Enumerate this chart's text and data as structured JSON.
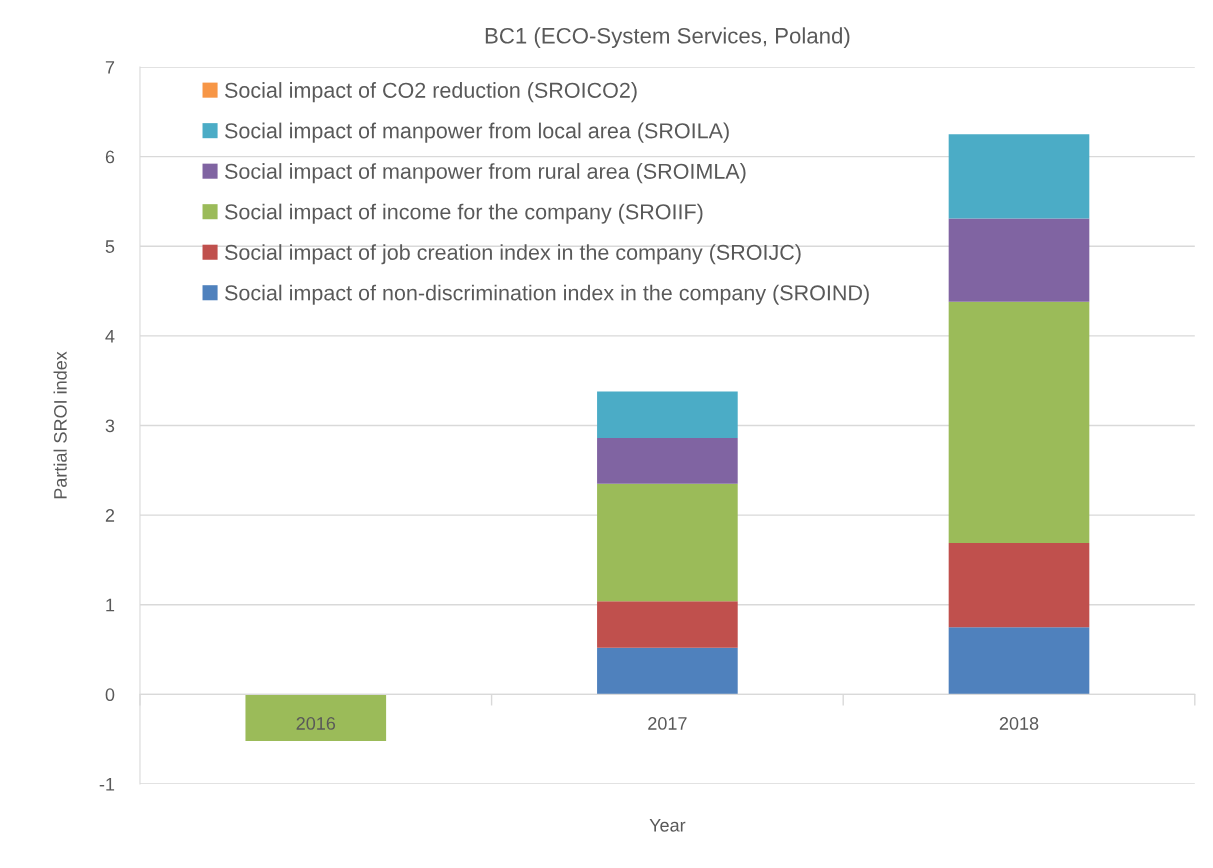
{
  "chart_data": {
    "type": "bar",
    "title": "BC1 (ECO-System Services, Poland)",
    "xlabel": "Year",
    "ylabel": "Partial SROI index",
    "categories": [
      "2016",
      "2017",
      "2018"
    ],
    "stacked": true,
    "series": [
      {
        "name": "Social impact of non-discrimination index in the company (SROIND)",
        "color": "#4f81bd",
        "values": [
          0,
          0.52,
          0.75
        ]
      },
      {
        "name": "Social impact of job creation index in the company (SROIJC)",
        "color": "#c0504d",
        "values": [
          0,
          0.52,
          0.94
        ]
      },
      {
        "name": "Social impact of income for the company (SROIIF)",
        "color": "#9bbb59",
        "values": [
          -0.52,
          1.31,
          2.69
        ]
      },
      {
        "name": "Social impact of manpower from rural area (SROIMLA)",
        "color": "#8064a2",
        "values": [
          0,
          0.51,
          0.93
        ]
      },
      {
        "name": "Social impact of manpower from local area (SROILA)",
        "color": "#4bacc6",
        "values": [
          0,
          0.52,
          0.94
        ]
      },
      {
        "name": "Social impact of CO2 reduction (SROICO2)",
        "color": "#f79646",
        "values": [
          0,
          0,
          0
        ]
      }
    ],
    "ylim": [
      -1,
      7
    ],
    "yticks": [
      -1,
      0,
      1,
      2,
      3,
      4,
      5,
      6,
      7
    ],
    "grid": "y",
    "legend": "top left"
  }
}
